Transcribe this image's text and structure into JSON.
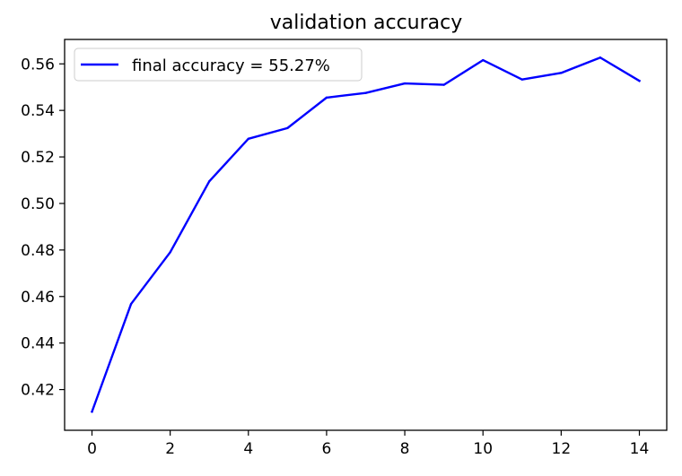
{
  "chart_data": {
    "type": "line",
    "title": "validation accuracy",
    "xlabel": "",
    "ylabel": "",
    "x": [
      0,
      1,
      2,
      3,
      4,
      5,
      6,
      7,
      8,
      9,
      10,
      11,
      12,
      13,
      14
    ],
    "series": [
      {
        "name": "final accuracy = 55.27%",
        "color": "#0000ff",
        "values": [
          0.4105,
          0.4568,
          0.479,
          0.5095,
          0.5278,
          0.5324,
          0.5455,
          0.5475,
          0.5516,
          0.551,
          0.5616,
          0.5533,
          0.5561,
          0.5627,
          0.5527
        ]
      }
    ],
    "xlim": [
      -0.7,
      14.7
    ],
    "ylim": [
      0.4025,
      0.5705
    ],
    "xticks": [
      0,
      2,
      4,
      6,
      8,
      10,
      12,
      14
    ],
    "xtick_labels": [
      "0",
      "2",
      "4",
      "6",
      "8",
      "10",
      "12",
      "14"
    ],
    "yticks": [
      0.42,
      0.44,
      0.46,
      0.48,
      0.5,
      0.52,
      0.54,
      0.56
    ],
    "ytick_labels": [
      "0.42",
      "0.44",
      "0.46",
      "0.48",
      "0.50",
      "0.52",
      "0.54",
      "0.56"
    ],
    "grid": false,
    "legend_position": "upper left"
  }
}
